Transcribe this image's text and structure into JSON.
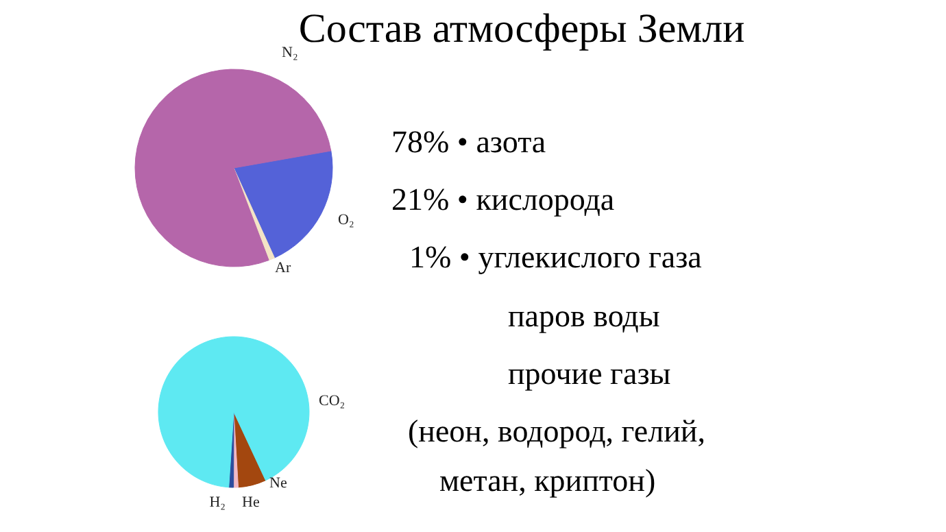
{
  "chart_data": [
    {
      "type": "pie",
      "title": "Состав атмосферы Земли",
      "categories": [
        "O₂",
        "Ar",
        "N₂"
      ],
      "values": [
        21,
        1,
        78
      ],
      "colors": [
        "#5462d8",
        "#f3e4c6",
        "#b566aa"
      ],
      "annotations": [
        "78% • азота",
        "21% • кислорода",
        "1% • углекислого газа",
        "паров воды",
        "прочие газы",
        "(неон, водород, гелий,",
        "метан, криптон)"
      ]
    },
    {
      "type": "pie",
      "categories": [
        "Ne",
        "He",
        "H₂",
        "CO₂"
      ],
      "values": [
        6,
        1,
        1,
        92
      ],
      "colors": [
        "#a3470f",
        "#f2b9c6",
        "#2d4d9e",
        "#5ee9f2"
      ]
    }
  ]
}
